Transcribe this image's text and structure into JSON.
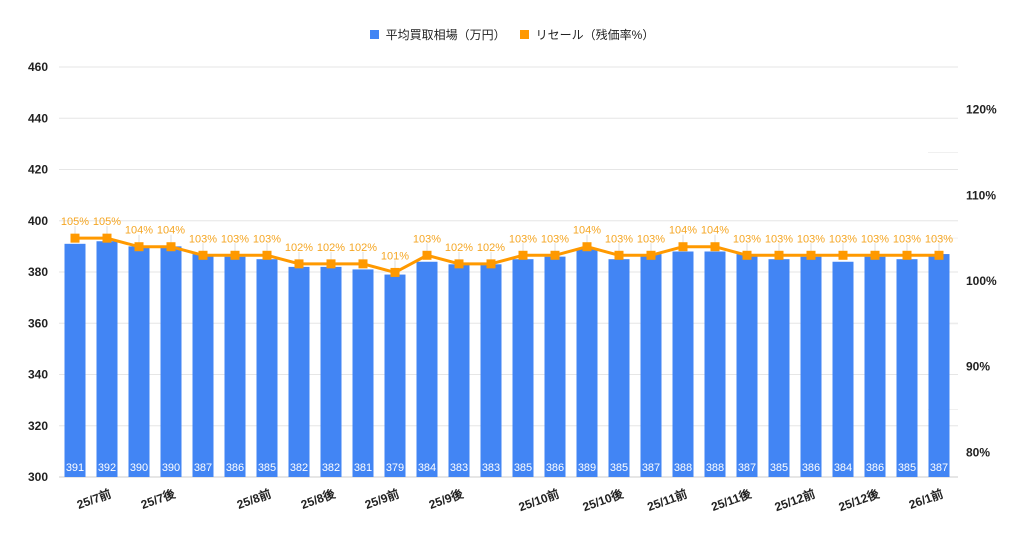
{
  "chart_data": {
    "type": "bar+line",
    "title": "",
    "legend_position": "top",
    "categories": [
      "25/7前a",
      "25/7前",
      "25/7後a",
      "25/7後",
      "25/8前a",
      "25/8前b",
      "25/8前",
      "25/8後a",
      "25/8後",
      "25/9前a",
      "25/9前",
      "25/9後a",
      "25/9後",
      "25/10前a",
      "25/10前b",
      "25/10前",
      "25/10後a",
      "25/10後",
      "25/11前a",
      "25/11前",
      "25/11後a",
      "25/11後",
      "25/12前a",
      "25/12前",
      "25/12後a",
      "25/12後",
      "26/1前a",
      "26/1前"
    ],
    "x_tick_labels": [
      {
        "index": 1,
        "label": "25/7前"
      },
      {
        "index": 3,
        "label": "25/7後"
      },
      {
        "index": 6,
        "label": "25/8前"
      },
      {
        "index": 8,
        "label": "25/8後"
      },
      {
        "index": 10,
        "label": "25/9前"
      },
      {
        "index": 12,
        "label": "25/9後"
      },
      {
        "index": 15,
        "label": "25/10前"
      },
      {
        "index": 17,
        "label": "25/10後"
      },
      {
        "index": 19,
        "label": "25/11前"
      },
      {
        "index": 21,
        "label": "25/11後"
      },
      {
        "index": 23,
        "label": "25/12前"
      },
      {
        "index": 25,
        "label": "25/12後"
      },
      {
        "index": 27,
        "label": "26/1前"
      }
    ],
    "series": [
      {
        "name": "平均買取相場（万円）",
        "type": "bar",
        "axis": "left",
        "color": "#4285f4",
        "values": [
          391,
          392,
          390,
          390,
          387,
          386,
          385,
          382,
          382,
          381,
          379,
          384,
          383,
          383,
          385,
          386,
          389,
          385,
          387,
          388,
          388,
          387,
          385,
          386,
          384,
          386,
          385,
          387
        ]
      },
      {
        "name": "リセール（残価率%）",
        "type": "line",
        "axis": "right",
        "color": "#ff9900",
        "values": [
          105,
          105,
          104,
          104,
          103,
          103,
          103,
          102,
          102,
          102,
          101,
          103,
          102,
          102,
          103,
          103,
          104,
          103,
          103,
          104,
          104,
          103,
          103,
          103,
          103,
          103,
          103,
          103
        ]
      }
    ],
    "y_left": {
      "min": 300,
      "max": 460,
      "ticks": [
        300,
        320,
        340,
        360,
        380,
        400,
        420,
        440,
        460
      ]
    },
    "y_right": {
      "min": 77,
      "max": 125,
      "ticks": [
        "80%",
        "90%",
        "100%",
        "110%",
        "120%"
      ],
      "tick_values": [
        80,
        90,
        100,
        110,
        120
      ]
    },
    "grid": true,
    "xlabel": "",
    "ylabel": ""
  },
  "legend": {
    "bar_label": "平均買取相場（万円）",
    "line_label": "リセール（残価率%）",
    "bar_color": "#4285f4",
    "line_color": "#ff9900"
  }
}
